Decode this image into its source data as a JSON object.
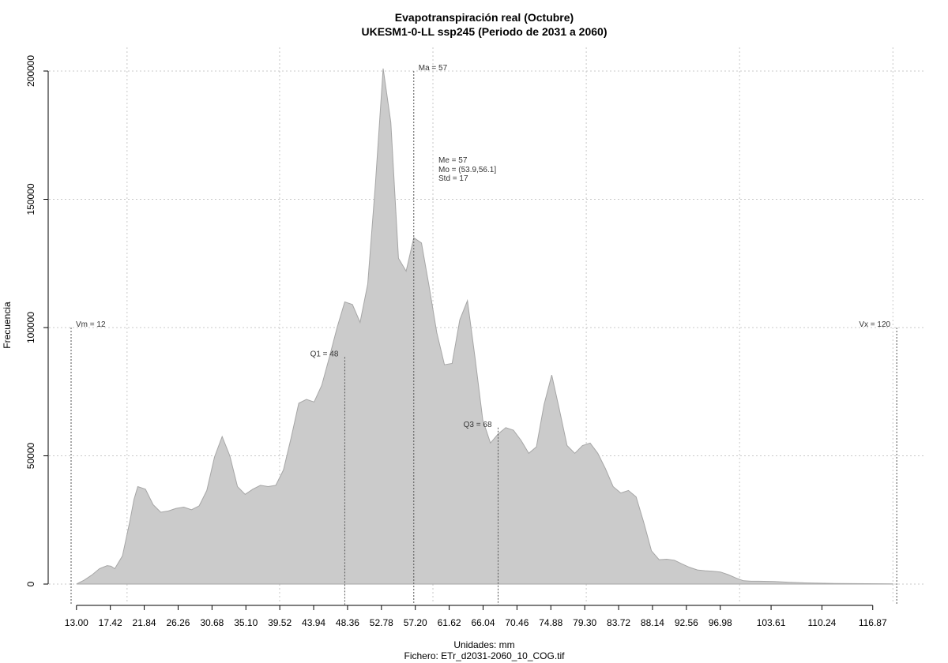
{
  "chart_data": {
    "type": "area",
    "title": "Evapotranspiración real (Octubre)",
    "subtitle": "UKESM1-0-LL ssp245 (Periodo de 2031 a 2060)",
    "xlabel": "Unidades: mm",
    "caption": "Fichero: ETr_d2031-2060_10_COG.tif",
    "ylabel": "Frecuencia",
    "xlim": [
      12.3,
      120.4
    ],
    "ylim": [
      0,
      200000
    ],
    "yticks": [
      0,
      50000,
      100000,
      150000,
      200000
    ],
    "ytick_labels": [
      "0",
      "50000",
      "100000",
      "150000",
      "200000"
    ],
    "xticks": [
      13.0,
      17.42,
      21.84,
      26.26,
      30.68,
      35.1,
      39.52,
      43.94,
      48.36,
      52.78,
      57.2,
      61.62,
      66.04,
      70.46,
      74.88,
      79.3,
      83.72,
      88.14,
      92.56,
      96.98,
      103.61,
      110.24,
      116.87
    ],
    "xtick_labels": [
      "13.00",
      "17.42",
      "21.84",
      "26.26",
      "30.68",
      "35.10",
      "39.52",
      "43.94",
      "48.36",
      "52.78",
      "57.20",
      "61.62",
      "66.04",
      "70.46",
      "74.88",
      "79.30",
      "83.72",
      "88.14",
      "92.56",
      "96.98",
      "103.61",
      "110.24",
      "116.87"
    ],
    "xgrid": [
      19.6,
      39.5,
      59.5,
      79.5,
      99.5,
      119.5
    ],
    "grid": true,
    "series": [
      {
        "x": [
          13.0,
          14.0,
          15.0,
          16.0,
          17.0,
          17.5,
          18.0,
          19.0,
          20.0,
          20.5,
          21.0,
          22.0,
          23.0,
          24.0,
          25.0,
          26.0,
          27.0,
          28.0,
          29.0,
          30.0,
          31.0,
          32.0,
          33.0,
          34.0,
          35.0,
          36.0,
          37.0,
          38.0,
          39.0,
          40.0,
          41.0,
          42.0,
          43.0,
          44.0,
          45.0,
          46.0,
          47.0,
          48.0,
          49.0,
          50.0,
          51.0,
          52.0,
          53.0,
          54.0,
          55.0,
          56.0,
          57.0,
          58.0,
          59.0,
          60.0,
          61.0,
          62.0,
          63.0,
          64.0,
          65.0,
          66.0,
          67.0,
          68.0,
          69.0,
          70.0,
          71.0,
          72.0,
          73.0,
          74.0,
          75.0,
          76.0,
          77.0,
          78.0,
          79.0,
          80.0,
          81.0,
          82.0,
          83.0,
          84.0,
          85.0,
          86.0,
          87.0,
          88.0,
          89.0,
          90.0,
          91.0,
          92.0,
          93.0,
          94.0,
          95.0,
          96.0,
          97.0,
          98.0,
          99.0,
          100.0,
          101.0,
          102.0,
          104.0,
          106.0,
          108.0,
          110.0,
          112.0,
          114.0,
          116.0,
          118.0,
          119.5
        ],
        "y": [
          0,
          1500,
          3500,
          6000,
          7200,
          7000,
          6000,
          11000,
          25000,
          33000,
          38000,
          37000,
          31000,
          28000,
          28500,
          29500,
          30000,
          29000,
          30500,
          36500,
          49500,
          57500,
          50000,
          38000,
          35000,
          37000,
          38500,
          38000,
          38500,
          44500,
          57000,
          70500,
          72000,
          71000,
          77500,
          88500,
          100000,
          110000,
          109000,
          102000,
          117000,
          156000,
          201000,
          180000,
          127000,
          122000,
          135000,
          133000,
          116000,
          98000,
          85500,
          86000,
          103000,
          110500,
          88000,
          64000,
          55000,
          58500,
          61000,
          60000,
          56000,
          51000,
          53500,
          70000,
          81500,
          68000,
          54000,
          51000,
          54000,
          55000,
          51000,
          45000,
          38000,
          35500,
          36500,
          34000,
          24000,
          13000,
          9500,
          9700,
          9300,
          7800,
          6500,
          5500,
          5200,
          5000,
          4700,
          3700,
          2400,
          1300,
          1100,
          1100,
          1000,
          700,
          450,
          350,
          250,
          200,
          150,
          120,
          100
        ]
      }
    ],
    "fill_color": "#cbcbcb",
    "edge_color": "#a6a6a6",
    "vlines": [
      {
        "x": 12.3,
        "y_top": 100000,
        "label": "Vm = 12",
        "anchor": "start"
      },
      {
        "x": 48.0,
        "y_top": 88500,
        "label": "Q1 = 48",
        "anchor": "end"
      },
      {
        "x": 57.0,
        "y_top": 200000,
        "label": "Ma = 57",
        "anchor": "start"
      },
      {
        "x": 68.0,
        "y_top": 61000,
        "label": "Q3 = 68",
        "anchor": "end"
      },
      {
        "x": 120.0,
        "y_top": 100000,
        "label": "Vx = 120",
        "anchor": "end"
      }
    ],
    "stats_text": [
      "Me = 57",
      "Mo = (53.9,56.1]",
      "Std = 17"
    ]
  }
}
